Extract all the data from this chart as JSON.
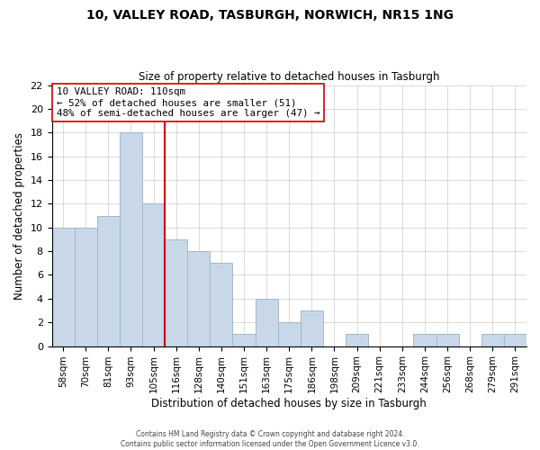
{
  "title": "10, VALLEY ROAD, TASBURGH, NORWICH, NR15 1NG",
  "subtitle": "Size of property relative to detached houses in Tasburgh",
  "xlabel": "Distribution of detached houses by size in Tasburgh",
  "ylabel": "Number of detached properties",
  "bar_labels": [
    "58sqm",
    "70sqm",
    "81sqm",
    "93sqm",
    "105sqm",
    "116sqm",
    "128sqm",
    "140sqm",
    "151sqm",
    "163sqm",
    "175sqm",
    "186sqm",
    "198sqm",
    "209sqm",
    "221sqm",
    "233sqm",
    "244sqm",
    "256sqm",
    "268sqm",
    "279sqm",
    "291sqm"
  ],
  "bar_heights": [
    10,
    10,
    11,
    18,
    12,
    9,
    8,
    7,
    1,
    4,
    2,
    3,
    0,
    1,
    0,
    0,
    1,
    1,
    0,
    1,
    1
  ],
  "bar_color": "#c8d8e8",
  "bar_edge_color": "#a0b8cc",
  "vline_x": 4.5,
  "vline_color": "#cc0000",
  "annotation_title": "10 VALLEY ROAD: 110sqm",
  "annotation_line1": "← 52% of detached houses are smaller (51)",
  "annotation_line2": "48% of semi-detached houses are larger (47) →",
  "annotation_box_color": "#ffffff",
  "annotation_box_edge": "#cc0000",
  "ylim": [
    0,
    22
  ],
  "footer1": "Contains HM Land Registry data © Crown copyright and database right 2024.",
  "footer2": "Contains public sector information licensed under the Open Government Licence v3.0."
}
